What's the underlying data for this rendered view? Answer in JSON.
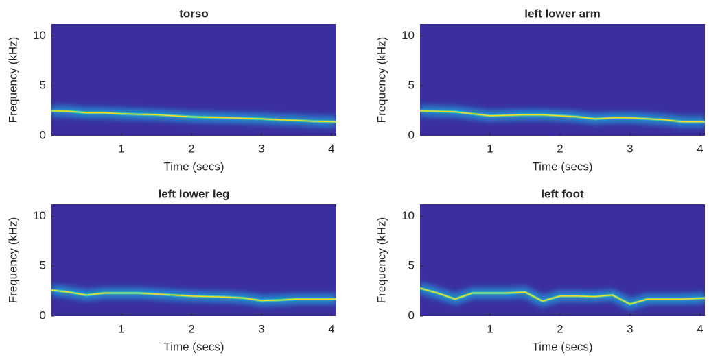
{
  "chart_data": [
    {
      "type": "spectrogram",
      "title": "torso",
      "xlabel": "Time (secs)",
      "ylabel": "Frequency (kHz)",
      "xlim": [
        0,
        4.07
      ],
      "ylim": [
        0,
        11.2
      ],
      "xticks": [
        1,
        2,
        3,
        4
      ],
      "yticks": [
        0,
        5,
        10
      ],
      "background_color": "#3b2fa0",
      "x": [
        0,
        0.25,
        0.5,
        0.75,
        1,
        1.25,
        1.5,
        1.75,
        2,
        2.25,
        2.5,
        2.75,
        3,
        3.25,
        3.5,
        3.75,
        4.07
      ],
      "series": [
        {
          "color": "#f2df2a",
          "values": [
            2.5,
            2.45,
            2.3,
            2.3,
            2.2,
            2.15,
            2.1,
            2.0,
            1.9,
            1.85,
            1.8,
            1.75,
            1.7,
            1.6,
            1.55,
            1.45,
            1.4
          ]
        }
      ]
    },
    {
      "type": "spectrogram",
      "title": "left lower arm",
      "xlabel": "Time (secs)",
      "ylabel": "Frequency (kHz)",
      "xlim": [
        0,
        4.07
      ],
      "ylim": [
        0,
        11.2
      ],
      "xticks": [
        1,
        2,
        3,
        4
      ],
      "yticks": [
        0,
        5,
        10
      ],
      "background_color": "#3b2fa0",
      "x": [
        0,
        0.25,
        0.5,
        0.75,
        1,
        1.25,
        1.5,
        1.75,
        2,
        2.25,
        2.5,
        2.75,
        3,
        3.25,
        3.5,
        3.75,
        4.07
      ],
      "series": [
        {
          "color": "#f2df2a",
          "values": [
            2.5,
            2.45,
            2.4,
            2.2,
            2.0,
            2.05,
            2.1,
            2.1,
            2.0,
            1.9,
            1.7,
            1.8,
            1.8,
            1.7,
            1.6,
            1.4,
            1.4
          ]
        }
      ]
    },
    {
      "type": "spectrogram",
      "title": "left lower leg",
      "xlabel": "Time (secs)",
      "ylabel": "Frequency (kHz)",
      "xlim": [
        0,
        4.07
      ],
      "ylim": [
        0,
        11.2
      ],
      "xticks": [
        1,
        2,
        3,
        4
      ],
      "yticks": [
        0,
        5,
        10
      ],
      "background_color": "#3b2fa0",
      "x": [
        0,
        0.25,
        0.5,
        0.75,
        1,
        1.25,
        1.5,
        1.75,
        2,
        2.25,
        2.5,
        2.75,
        3,
        3.25,
        3.5,
        3.75,
        4.07
      ],
      "series": [
        {
          "color": "#f2df2a",
          "values": [
            2.6,
            2.4,
            2.1,
            2.3,
            2.3,
            2.3,
            2.2,
            2.1,
            2.0,
            1.95,
            1.9,
            1.8,
            1.55,
            1.6,
            1.7,
            1.7,
            1.7
          ]
        }
      ]
    },
    {
      "type": "spectrogram",
      "title": "left foot",
      "xlabel": "Time (secs)",
      "ylabel": "Frequency (kHz)",
      "xlim": [
        0,
        4.07
      ],
      "ylim": [
        0,
        11.2
      ],
      "xticks": [
        1,
        2,
        3,
        4
      ],
      "yticks": [
        0,
        5,
        10
      ],
      "background_color": "#3b2fa0",
      "x": [
        0,
        0.25,
        0.5,
        0.75,
        1,
        1.25,
        1.5,
        1.75,
        2,
        2.25,
        2.5,
        2.75,
        3,
        3.25,
        3.5,
        3.75,
        4.07
      ],
      "series": [
        {
          "color": "#f2df2a",
          "values": [
            2.8,
            2.3,
            1.7,
            2.3,
            2.3,
            2.3,
            2.4,
            1.5,
            2.0,
            2.0,
            1.95,
            2.1,
            1.2,
            1.7,
            1.7,
            1.7,
            1.8
          ]
        }
      ]
    }
  ]
}
